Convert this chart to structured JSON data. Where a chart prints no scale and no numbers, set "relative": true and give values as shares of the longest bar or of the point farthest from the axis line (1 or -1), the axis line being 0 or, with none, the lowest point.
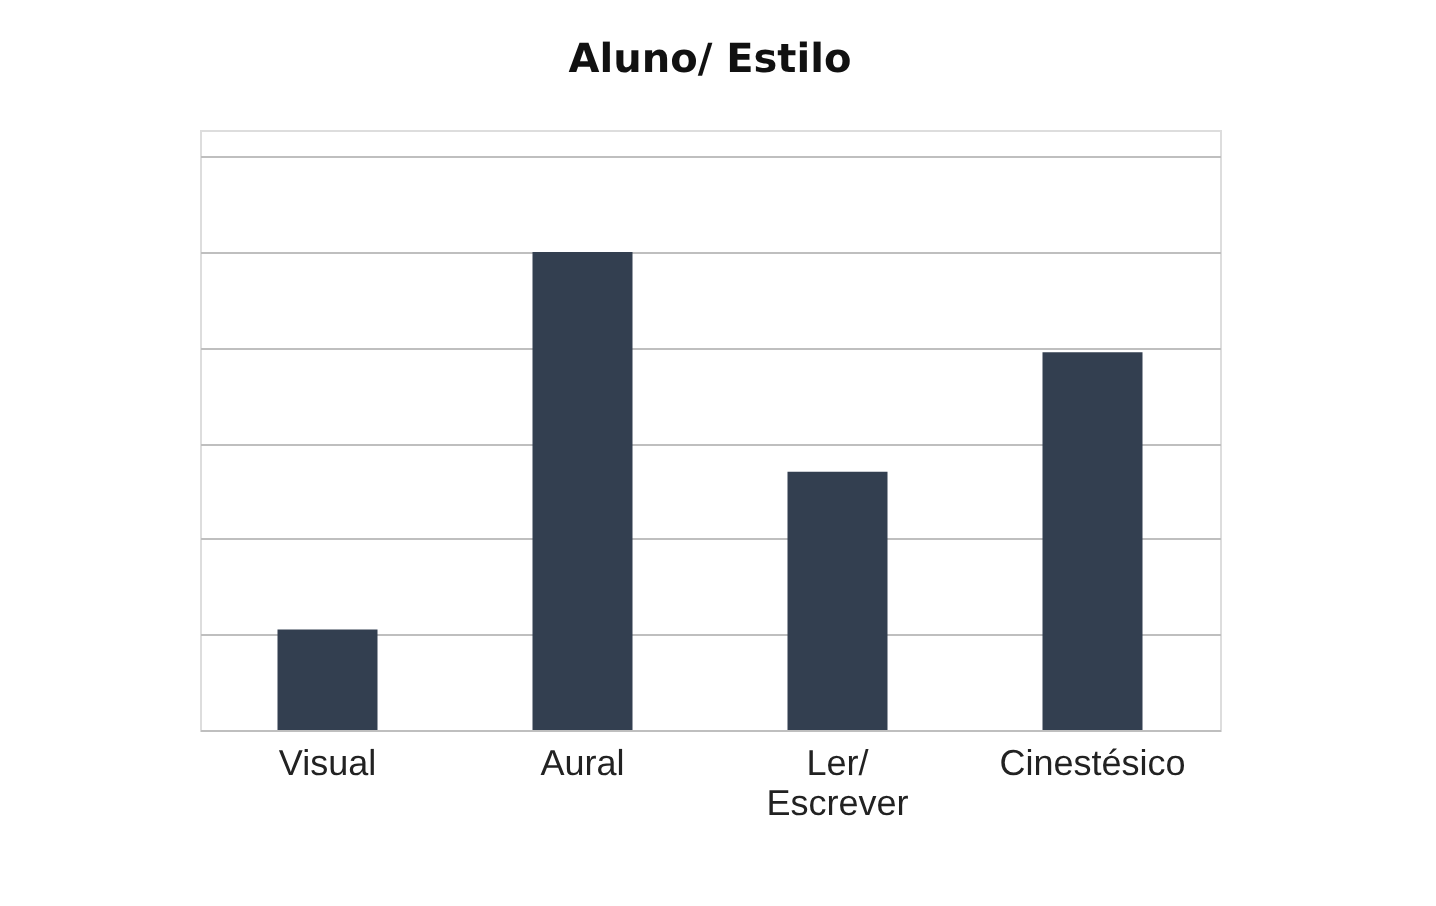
{
  "chart_data": {
    "type": "bar",
    "title": "Aluno/ Estilo",
    "categories": [
      "Visual",
      "Aural",
      "Ler/ Escrever",
      "Cinestésico"
    ],
    "values": [
      0.21,
      1,
      0.54,
      0.79
    ],
    "color": "#333f50",
    "relative": true,
    "grid": "y"
  }
}
